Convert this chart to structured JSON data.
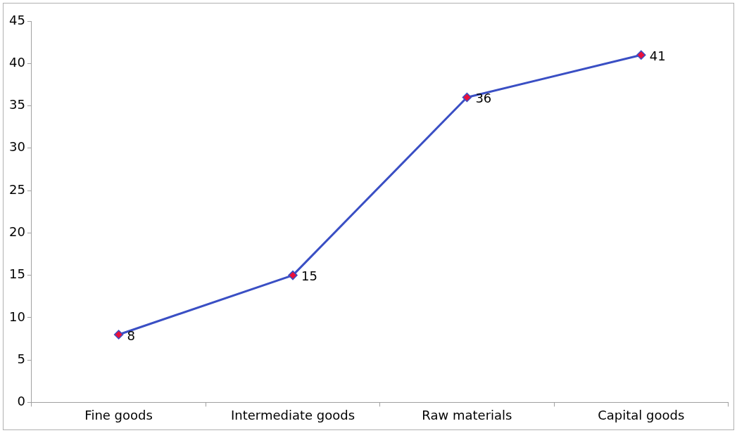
{
  "chart_data": {
    "type": "line",
    "categories": [
      "Fine goods",
      "Intermediate goods",
      "Raw materials",
      "Capital goods"
    ],
    "series": [
      {
        "color": "#3a4fc4",
        "values": [
          8,
          15,
          36,
          41
        ]
      }
    ],
    "ylim": [
      0,
      45
    ],
    "yticks": [
      0,
      5,
      10,
      15,
      20,
      25,
      30,
      35,
      40,
      45
    ],
    "grid": false,
    "legend": false,
    "marker": "diamond",
    "line_style": "solid",
    "data_labels": true
  }
}
